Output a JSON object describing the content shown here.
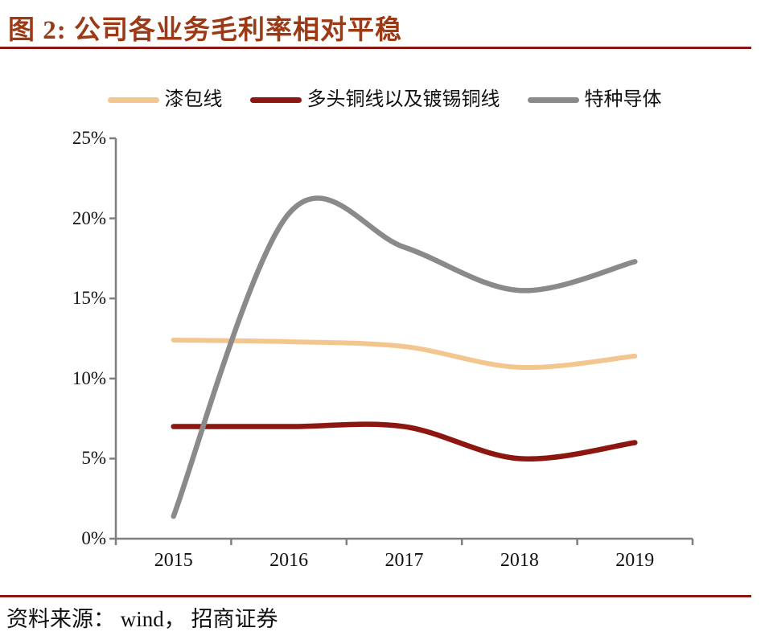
{
  "figure": {
    "title": "图 2:  公司各业务毛利率相对平稳",
    "source": "资料来源： wind， 招商证券"
  },
  "colors": {
    "title_text": "#9C3A16",
    "rule": "#8B1714",
    "axis": "#7F7F7F",
    "label_text": "#111111"
  },
  "chart_data": {
    "type": "line",
    "title": "公司各业务毛利率相对平稳",
    "categories": [
      "2015",
      "2016",
      "2017",
      "2018",
      "2019"
    ],
    "series": [
      {
        "name": "漆包线",
        "color": "#F3C68F",
        "width": 6,
        "values": [
          12.4,
          12.3,
          12.0,
          10.7,
          11.4
        ]
      },
      {
        "name": "多头铜线以及镀锡铜线",
        "color": "#8C1711",
        "width": 6.5,
        "values": [
          7.0,
          7.0,
          7.0,
          5.0,
          6.0
        ]
      },
      {
        "name": "特种导体",
        "color": "#8A8A8A",
        "width": 6.5,
        "values": [
          1.4,
          20.3,
          18.2,
          15.5,
          17.3
        ]
      }
    ],
    "ylim": [
      0,
      25
    ],
    "y_tick_step": 5,
    "y_tick_labels_desc": [
      "25%",
      "20%",
      "15%",
      "10%",
      "5%",
      "0%"
    ],
    "unit": "%",
    "grid": false,
    "smooth": true,
    "legend_position": "top"
  }
}
